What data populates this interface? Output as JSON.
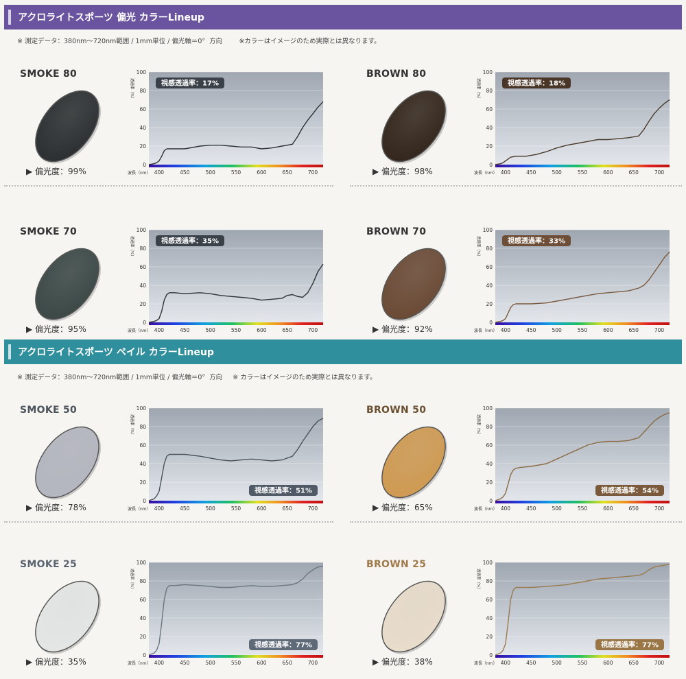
{
  "sections": [
    {
      "title": "アクロライトスポーツ 偏光 カラーLineup",
      "note": "※ 測定データ：380nm～720nm範囲 / 1mm単位 / 偏光軸＝0°  方向        ※カラーはイメージのため実際とは異なります。",
      "color": "#6a54a0"
    },
    {
      "title": "アクロライトスポーツ ペイル カラーLineup",
      "note": "※ 測定データ：380nm～720nm範囲 / 1mm単位 / 偏光軸＝0°  方向     ※ カラーはイメージのため実際とは異なります。",
      "color": "#2f8f9c"
    }
  ],
  "lenses": [
    {
      "name": "SMOKE 80",
      "polarization": "▶ 偏光度：99%",
      "badge": "視感透過率：17%",
      "name_color": "#333333",
      "lens_color": "#2b2f31",
      "curve_color": "#2d3338",
      "badge_color": "#3a4148"
    },
    {
      "name": "BROWN 80",
      "polarization": "▶ 偏光度：98%",
      "badge": "視感透過率：18%",
      "name_color": "#333333",
      "lens_color": "#33261c",
      "curve_color": "#4a3a2c",
      "badge_color": "#4a3626"
    },
    {
      "name": "SMOKE 70",
      "polarization": "▶ 偏光度：95%",
      "badge": "視感透過率：35%",
      "name_color": "#333333",
      "lens_color": "#3b4846",
      "curve_color": "#2d3338",
      "badge_color": "#3a4148"
    },
    {
      "name": "BROWN 70",
      "polarization": "▶ 偏光度：92%",
      "badge": "視感透過率：33%",
      "name_color": "#333333",
      "lens_color": "#6a4a35",
      "curve_color": "#7a5a40",
      "badge_color": "#6e4e36"
    },
    {
      "name": "SMOKE 50",
      "polarization": "▶ 偏光度：78%",
      "badge": "視感透過率：51%",
      "name_color": "#4a525a",
      "lens_color": "#b4b6c0",
      "curve_color": "#4a525a",
      "badge_color": "#505a66"
    },
    {
      "name": "BROWN 50",
      "polarization": "▶ 偏光度：65%",
      "badge": "視感透過率：54%",
      "name_color": "#6a5030",
      "lens_color": "#cf9a52",
      "curve_color": "#8a6a45",
      "badge_color": "#7a5a3a"
    },
    {
      "name": "SMOKE 25",
      "polarization": "▶ 偏光度：35%",
      "badge": "視感透過率：77%",
      "name_color": "#5a6470",
      "lens_color": "#e4e6e6",
      "curve_color": "#6a7580",
      "badge_color": "#5e6a78"
    },
    {
      "name": "BROWN 25",
      "polarization": "▶ 偏光度：38%",
      "badge": "視感透過率：77%",
      "name_color": "#a07a4a",
      "lens_color": "#e8dccb",
      "curve_color": "#9a7a50",
      "badge_color": "#9a7646"
    }
  ],
  "axis": {
    "ylabel": "透過率（%）",
    "xlabel": "波長（nm）"
  },
  "chart_data": [
    {
      "type": "line",
      "series_name": "SMOKE 80",
      "xlim": [
        380,
        720
      ],
      "ylim": [
        0,
        100
      ],
      "yticks": [
        0,
        20,
        40,
        60,
        80,
        100
      ],
      "xticks": [
        400,
        450,
        500,
        550,
        600,
        650,
        700
      ],
      "x": [
        380,
        390,
        395,
        400,
        405,
        410,
        415,
        420,
        430,
        450,
        480,
        500,
        520,
        540,
        560,
        580,
        600,
        620,
        640,
        660,
        670,
        680,
        690,
        700,
        710,
        720
      ],
      "y": [
        0,
        1,
        2,
        4,
        9,
        15,
        17,
        17,
        17,
        17,
        20,
        21,
        21,
        20,
        19,
        19,
        17,
        18,
        20,
        22,
        30,
        40,
        48,
        55,
        62,
        68
      ]
    },
    {
      "type": "line",
      "series_name": "BROWN 80",
      "xlim": [
        380,
        720
      ],
      "ylim": [
        0,
        100
      ],
      "yticks": [
        0,
        20,
        40,
        60,
        80,
        100
      ],
      "xticks": [
        400,
        450,
        500,
        550,
        600,
        650,
        700
      ],
      "x": [
        380,
        390,
        395,
        400,
        405,
        410,
        420,
        440,
        460,
        480,
        500,
        520,
        540,
        560,
        580,
        600,
        620,
        640,
        660,
        670,
        680,
        690,
        700,
        710,
        720
      ],
      "y": [
        0,
        1,
        2,
        4,
        6,
        8,
        9,
        9,
        11,
        14,
        18,
        21,
        23,
        25,
        27,
        27,
        28,
        29,
        31,
        38,
        47,
        55,
        61,
        66,
        70
      ]
    },
    {
      "type": "line",
      "series_name": "SMOKE 70",
      "xlim": [
        380,
        720
      ],
      "ylim": [
        0,
        100
      ],
      "yticks": [
        0,
        20,
        40,
        60,
        80,
        100
      ],
      "xticks": [
        400,
        450,
        500,
        550,
        600,
        650,
        700
      ],
      "x": [
        380,
        390,
        395,
        400,
        405,
        410,
        415,
        420,
        430,
        450,
        480,
        500,
        520,
        540,
        560,
        580,
        600,
        620,
        640,
        650,
        660,
        670,
        680,
        690,
        700,
        710,
        720
      ],
      "y": [
        0,
        1,
        2,
        4,
        12,
        24,
        30,
        32,
        32,
        31,
        32,
        31,
        29,
        28,
        27,
        26,
        24,
        25,
        26,
        29,
        30,
        28,
        27,
        32,
        42,
        55,
        63
      ]
    },
    {
      "type": "line",
      "series_name": "BROWN 70",
      "xlim": [
        380,
        720
      ],
      "ylim": [
        0,
        100
      ],
      "yticks": [
        0,
        20,
        40,
        60,
        80,
        100
      ],
      "xticks": [
        400,
        450,
        500,
        550,
        600,
        650,
        700
      ],
      "x": [
        380,
        390,
        395,
        400,
        405,
        410,
        415,
        420,
        430,
        450,
        480,
        500,
        520,
        540,
        560,
        580,
        600,
        620,
        640,
        660,
        670,
        680,
        690,
        700,
        710,
        720
      ],
      "y": [
        0,
        1,
        2,
        4,
        10,
        16,
        19,
        20,
        20,
        20,
        21,
        23,
        25,
        27,
        29,
        31,
        32,
        33,
        34,
        37,
        40,
        46,
        54,
        62,
        70,
        76
      ]
    },
    {
      "type": "line",
      "series_name": "SMOKE 50",
      "xlim": [
        380,
        720
      ],
      "ylim": [
        0,
        100
      ],
      "yticks": [
        0,
        20,
        40,
        60,
        80,
        100
      ],
      "xticks": [
        400,
        450,
        500,
        550,
        600,
        650,
        700
      ],
      "x": [
        380,
        390,
        395,
        400,
        405,
        410,
        415,
        420,
        430,
        450,
        480,
        500,
        520,
        540,
        560,
        580,
        600,
        620,
        640,
        660,
        670,
        680,
        690,
        700,
        710,
        720
      ],
      "y": [
        0,
        2,
        5,
        10,
        25,
        40,
        48,
        50,
        50,
        50,
        48,
        46,
        44,
        43,
        44,
        45,
        44,
        43,
        44,
        48,
        55,
        64,
        72,
        80,
        86,
        89
      ]
    },
    {
      "type": "line",
      "series_name": "BROWN 50",
      "xlim": [
        380,
        720
      ],
      "ylim": [
        0,
        100
      ],
      "yticks": [
        0,
        20,
        40,
        60,
        80,
        100
      ],
      "xticks": [
        400,
        450,
        500,
        550,
        600,
        650,
        700
      ],
      "x": [
        380,
        390,
        395,
        400,
        405,
        410,
        415,
        420,
        430,
        450,
        480,
        500,
        520,
        540,
        560,
        580,
        600,
        620,
        640,
        660,
        670,
        680,
        690,
        700,
        710,
        720
      ],
      "y": [
        0,
        2,
        4,
        8,
        18,
        28,
        33,
        35,
        36,
        37,
        40,
        45,
        50,
        55,
        60,
        63,
        64,
        64,
        65,
        68,
        74,
        80,
        86,
        90,
        93,
        95
      ]
    },
    {
      "type": "line",
      "series_name": "SMOKE 25",
      "xlim": [
        380,
        720
      ],
      "ylim": [
        0,
        100
      ],
      "yticks": [
        0,
        20,
        40,
        60,
        80,
        100
      ],
      "xticks": [
        400,
        450,
        500,
        550,
        600,
        650,
        700
      ],
      "x": [
        380,
        390,
        395,
        400,
        405,
        410,
        415,
        420,
        430,
        450,
        480,
        500,
        520,
        540,
        560,
        580,
        600,
        620,
        640,
        660,
        670,
        680,
        690,
        700,
        710,
        720
      ],
      "y": [
        0,
        2,
        5,
        12,
        35,
        60,
        72,
        75,
        75,
        76,
        75,
        74,
        73,
        73,
        74,
        75,
        74,
        74,
        75,
        76,
        78,
        82,
        88,
        92,
        95,
        96
      ]
    },
    {
      "type": "line",
      "series_name": "BROWN 25",
      "xlim": [
        380,
        720
      ],
      "ylim": [
        0,
        100
      ],
      "yticks": [
        0,
        20,
        40,
        60,
        80,
        100
      ],
      "xticks": [
        400,
        450,
        500,
        550,
        600,
        650,
        700
      ],
      "x": [
        380,
        390,
        395,
        400,
        405,
        410,
        415,
        420,
        430,
        450,
        480,
        500,
        520,
        540,
        560,
        580,
        600,
        620,
        640,
        660,
        670,
        680,
        690,
        700,
        710,
        720
      ],
      "y": [
        0,
        2,
        5,
        12,
        35,
        60,
        70,
        73,
        73,
        73,
        74,
        75,
        76,
        78,
        80,
        82,
        83,
        84,
        85,
        86,
        88,
        92,
        95,
        96,
        97,
        98
      ]
    }
  ]
}
